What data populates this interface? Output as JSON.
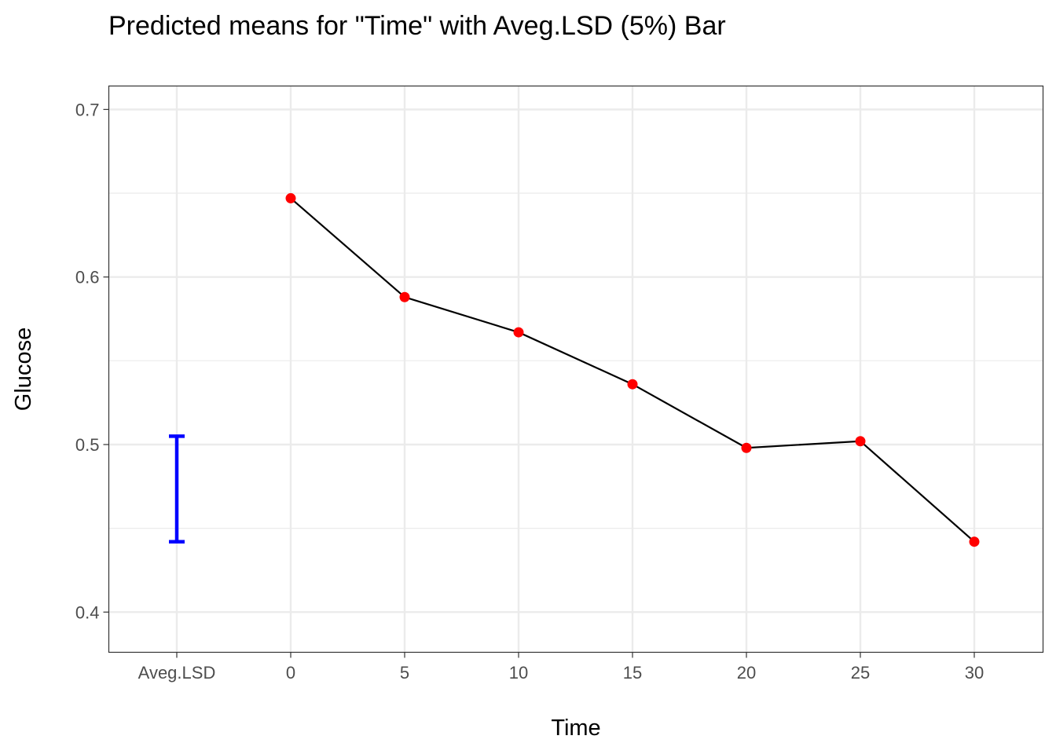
{
  "chart_data": {
    "type": "line",
    "title": "Predicted means for \"Time\" with Aveg.LSD (5%) Bar",
    "xlabel": "Time",
    "ylabel": "Glucose",
    "categories": [
      "Aveg.LSD",
      "0",
      "5",
      "10",
      "15",
      "20",
      "25",
      "30"
    ],
    "x": [
      0,
      5,
      10,
      15,
      20,
      25,
      30
    ],
    "series": [
      {
        "values": [
          0.647,
          0.588,
          0.567,
          0.536,
          0.498,
          0.502,
          0.442
        ]
      }
    ],
    "lsd_bar": {
      "category": "Aveg.LSD",
      "low": 0.442,
      "high": 0.505
    },
    "ylim": [
      0.376,
      0.714
    ],
    "y_ticks": [
      0.4,
      0.5,
      0.6,
      0.7
    ],
    "y_tick_labels": [
      "0.4",
      "0.5",
      "0.6",
      "0.7"
    ],
    "grid": true,
    "legend": "none",
    "colors": {
      "points": "#ff0000",
      "line": "#000000",
      "lsd_bar": "#0000ff",
      "grid": "#ebebeb",
      "panel_border": "#333333"
    }
  }
}
